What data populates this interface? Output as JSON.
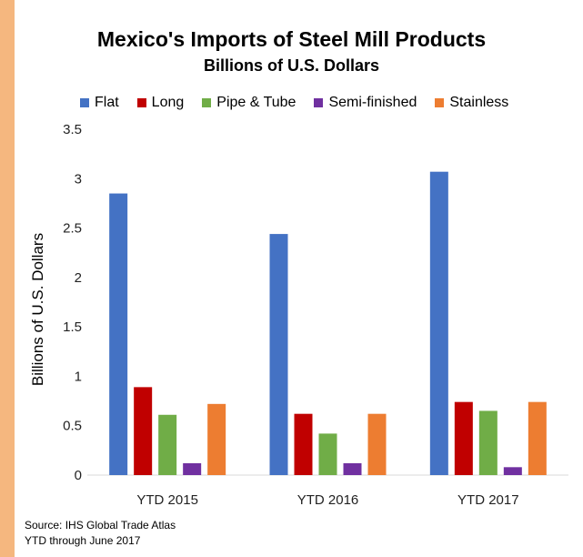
{
  "chart_data": {
    "type": "bar",
    "title": "Mexico's Imports of Steel Mill Products",
    "subtitle": "Billions of U.S. Dollars",
    "ylabel": "Billions of U.S. Dollars",
    "xlabel": "",
    "categories": [
      "YTD 2015",
      "YTD 2016",
      "YTD 2017"
    ],
    "ylim": [
      0,
      3.5
    ],
    "yticks": [
      "0",
      "0.5",
      "1",
      "1.5",
      "2",
      "2.5",
      "3",
      "3.5"
    ],
    "grid": false,
    "legend_position": "top",
    "series": [
      {
        "name": "Flat",
        "color": "#4472c4",
        "values": [
          2.85,
          2.44,
          3.07
        ]
      },
      {
        "name": "Long",
        "color": "#c00000",
        "values": [
          0.89,
          0.62,
          0.74
        ]
      },
      {
        "name": "Pipe & Tube",
        "color": "#70ad47",
        "values": [
          0.61,
          0.42,
          0.65
        ]
      },
      {
        "name": "Semi-finished",
        "color": "#7030a0",
        "values": [
          0.12,
          0.12,
          0.08
        ]
      },
      {
        "name": "Stainless",
        "color": "#ed7d31",
        "values": [
          0.72,
          0.62,
          0.74
        ]
      }
    ]
  },
  "source": {
    "line1": "Source: IHS Global Trade Atlas",
    "line2": "YTD through June 2017"
  },
  "colors": {
    "frame": "#f5b77f",
    "background": "#ffffff"
  }
}
